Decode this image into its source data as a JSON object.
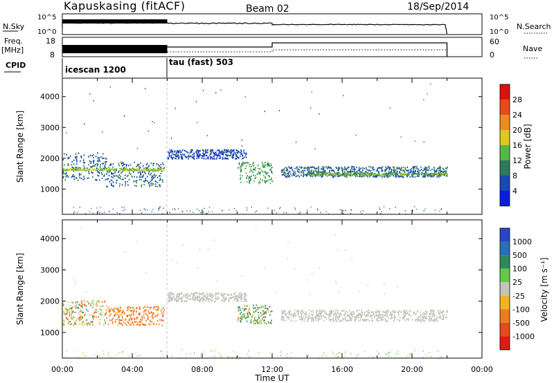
{
  "header": {
    "site": "Kapuskasing (fitACF)",
    "beam": "Beam 02",
    "date": "18/Sep/2014"
  },
  "strips": {
    "nsky_label": "N.Sky",
    "nsky_ticks": [
      "10^5",
      "10^0"
    ],
    "nsearch_label": "N.Search",
    "nsearch_ticks": [
      "10^5",
      "10^0"
    ],
    "freq_label": "Freq.",
    "freq_unit": "[MHz]",
    "freq_ticks": [
      "18",
      "8"
    ],
    "nave_label": "Nave",
    "nave_ticks": [
      "60",
      "0"
    ],
    "cpid_label": "CPID",
    "cpid_segments": [
      {
        "label": "icescan 1200",
        "start": 0,
        "end": 6
      },
      {
        "label": "tau (fast) 503",
        "start": 6,
        "end": 24
      }
    ]
  },
  "axes": {
    "xlabel": "Time UT",
    "x_ticks": [
      "00:00",
      "04:00",
      "08:00",
      "12:00",
      "16:00",
      "20:00",
      "00:00"
    ],
    "ylabel": "Slant Range [km]",
    "y_ticks": [
      "1000",
      "2000",
      "3000",
      "4000"
    ]
  },
  "colorbars": {
    "power": {
      "title": "Power [dB]",
      "labels": [
        "4",
        "8",
        "12",
        "16",
        "20",
        "24",
        "28"
      ],
      "colors": [
        "#0a1ee0",
        "#1a48b8",
        "#2f7a5a",
        "#54b848",
        "#dcc81e",
        "#f08a1e",
        "#e84a18",
        "#d81410"
      ]
    },
    "velocity": {
      "title": "Velocity [m s⁻¹]",
      "labels": [
        "1000",
        "500",
        "100",
        "25",
        "-25",
        "-100",
        "-500",
        "-1000"
      ],
      "colors": [
        "#2846c8",
        "#2a6eb8",
        "#2e8a5a",
        "#66c844",
        "#c4c4bc",
        "#f0b41e",
        "#f07a1e",
        "#e84a18",
        "#e01c10"
      ]
    }
  },
  "chart_data": [
    {
      "type": "heatmap",
      "panel": "power",
      "xlabel": "Time UT",
      "ylabel": "Slant Range [km]",
      "xlim_hours": [
        0,
        24
      ],
      "ylim_km": [
        180,
        4600
      ],
      "colorbar_label": "Power [dB]",
      "echo_bands": [
        {
          "t0": 0.0,
          "t1": 2.5,
          "r_center": 1750,
          "r_halfwidth": 450,
          "value_db": 8
        },
        {
          "t0": 2.5,
          "t1": 5.8,
          "r_center": 1500,
          "r_halfwidth": 400,
          "value_db": 8
        },
        {
          "t0": 6.0,
          "t1": 10.5,
          "r_center": 2150,
          "r_halfwidth": 150,
          "value_db": 6
        },
        {
          "t0": 10.0,
          "t1": 12.0,
          "r_center": 1550,
          "r_halfwidth": 350,
          "value_db": 12
        },
        {
          "t0": 12.5,
          "t1": 22.0,
          "r_center": 1580,
          "r_halfwidth": 170,
          "value_db": 8
        }
      ],
      "bright_streaks": [
        {
          "t0": 0.0,
          "t1": 5.8,
          "r": 1650,
          "value_db": 16
        },
        {
          "t0": 14.0,
          "t1": 22.0,
          "r": 1500,
          "value_db": 14
        }
      ]
    },
    {
      "type": "heatmap",
      "panel": "velocity",
      "xlabel": "Time UT",
      "ylabel": "Slant Range [km]",
      "xlim_hours": [
        0,
        24
      ],
      "ylim_km": [
        180,
        4600
      ],
      "colorbar_label": "Velocity [m s⁻¹]",
      "echo_bands": [
        {
          "t0": 0.0,
          "t1": 2.5,
          "r_center": 1650,
          "r_halfwidth": 400,
          "value_ms": -50
        },
        {
          "t0": 2.5,
          "t1": 5.8,
          "r_center": 1550,
          "r_halfwidth": 300,
          "value_ms": -300
        },
        {
          "t0": 6.0,
          "t1": 10.5,
          "r_center": 2150,
          "r_halfwidth": 140,
          "value_ms": 0
        },
        {
          "t0": 10.0,
          "t1": 12.0,
          "r_center": 1600,
          "r_halfwidth": 300,
          "value_ms": 60
        },
        {
          "t0": 12.5,
          "t1": 22.0,
          "r_center": 1560,
          "r_halfwidth": 180,
          "value_ms": 0
        }
      ]
    }
  ]
}
